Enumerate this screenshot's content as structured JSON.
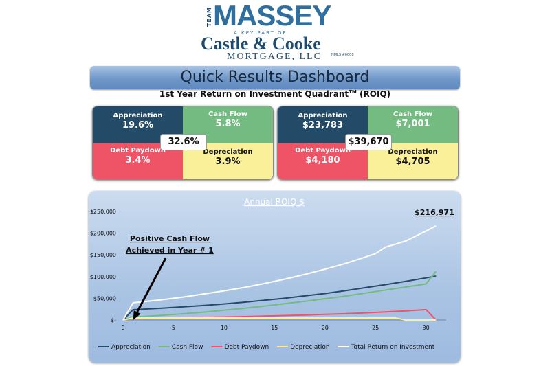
{
  "logo": {
    "team": "TEAM",
    "name": "MASSEY",
    "tagline": "A KEY PART OF",
    "company": "Castle & Cooke",
    "company_sub": "MORTGAGE, LLC",
    "nmls": "NMLS #0000"
  },
  "banner": {
    "title": "Quick Results Dashboard"
  },
  "subtitle": {
    "text": "1st Year Return on Investment Quadrant",
    "tm": "TM",
    "suffix": " (ROIQ)"
  },
  "quadrant_percent": {
    "appreciation": {
      "label": "Appreciation",
      "value": "19.6%"
    },
    "cash_flow": {
      "label": "Cash Flow",
      "value": "5.8%"
    },
    "debt_paydown": {
      "label": "Debt Paydown",
      "value": "3.4%"
    },
    "depreciation": {
      "label": "Depreciation",
      "value": "3.9%"
    },
    "total": "32.6%"
  },
  "quadrant_dollar": {
    "appreciation": {
      "label": "Appreciation",
      "value": "$23,783"
    },
    "cash_flow": {
      "label": "Cash Flow",
      "value": "$7,001"
    },
    "debt_paydown": {
      "label": "Debt Paydown",
      "value": "$4,180"
    },
    "depreciation": {
      "label": "Depreciation",
      "value": "$4,705"
    },
    "total": "$39,670"
  },
  "colors": {
    "appreciation": "#234a66",
    "cash_flow": "#74bb82",
    "debt_paydown": "#ee5366",
    "depreciation": "#fbf09a",
    "total": "#ffffff"
  },
  "chart_data": {
    "type": "line",
    "title": "Annual ROIQ $",
    "xlabel": "",
    "ylabel": "",
    "xlim": [
      0,
      32
    ],
    "ylim": [
      0,
      250000
    ],
    "xticks": [
      0,
      5,
      10,
      15,
      20,
      25,
      30
    ],
    "yticks": [
      0,
      50000,
      100000,
      150000,
      200000,
      250000
    ],
    "ytick_labels": [
      "$-",
      "$50,000",
      "$100,000",
      "$150,000",
      "$200,000",
      "$250,000"
    ],
    "grid": false,
    "legend_position": "bottom",
    "annotation": {
      "line1": "Positive Cash Flow",
      "line2": "Achieved in Year # 1",
      "x": 1,
      "y": 0
    },
    "end_label": "$216,971",
    "series": [
      {
        "name": "Appreciation",
        "color": "#234a66",
        "x": [
          0,
          1,
          2,
          4,
          6,
          8,
          10,
          12,
          14,
          16,
          18,
          20,
          22,
          24,
          26,
          28,
          30,
          31
        ],
        "y": [
          0,
          23783,
          25000,
          27500,
          30500,
          33500,
          37000,
          41000,
          45500,
          50000,
          55500,
          61000,
          67500,
          74500,
          81500,
          89000,
          97000,
          101000
        ]
      },
      {
        "name": "Cash Flow",
        "color": "#74bb82",
        "x": [
          0,
          1,
          2,
          4,
          6,
          8,
          10,
          12,
          14,
          16,
          18,
          20,
          22,
          24,
          26,
          28,
          30,
          31
        ],
        "y": [
          0,
          7001,
          8000,
          11000,
          14500,
          18000,
          22500,
          27000,
          32000,
          37500,
          43000,
          49000,
          55000,
          62000,
          69000,
          76000,
          83000,
          112000
        ]
      },
      {
        "name": "Debt Paydown",
        "color": "#ee5366",
        "x": [
          0,
          1,
          2,
          4,
          6,
          8,
          10,
          12,
          14,
          16,
          18,
          20,
          22,
          24,
          26,
          28,
          30,
          31
        ],
        "y": [
          0,
          4180,
          4500,
          5000,
          5500,
          6200,
          7000,
          8000,
          9000,
          10200,
          11500,
          13000,
          14500,
          16500,
          18500,
          21000,
          24000,
          0
        ]
      },
      {
        "name": "Depreciation",
        "color": "#fbf09a",
        "x": [
          0,
          1,
          2,
          4,
          6,
          8,
          10,
          12,
          14,
          16,
          18,
          20,
          22,
          24,
          26,
          27,
          28,
          30,
          31
        ],
        "y": [
          0,
          4705,
          4705,
          4705,
          4705,
          4705,
          4705,
          4705,
          4705,
          4705,
          4705,
          4705,
          4705,
          4705,
          4705,
          4705,
          0,
          0,
          0
        ]
      },
      {
        "name": "Total Return on Investment",
        "color": "#ffffff",
        "x": [
          0,
          1,
          2,
          4,
          6,
          8,
          10,
          12,
          14,
          16,
          18,
          20,
          22,
          24,
          25,
          26,
          27,
          28,
          30,
          31
        ],
        "y": [
          0,
          39670,
          42000,
          47000,
          53000,
          60000,
          67000,
          75000,
          84000,
          94000,
          105000,
          117000,
          130000,
          145000,
          153000,
          168000,
          175000,
          182000,
          205000,
          216971
        ]
      }
    ]
  }
}
